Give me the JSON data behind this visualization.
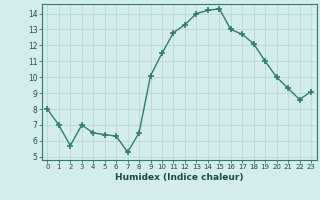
{
  "x": [
    0,
    1,
    2,
    3,
    4,
    5,
    6,
    7,
    8,
    9,
    10,
    11,
    12,
    13,
    14,
    15,
    16,
    17,
    18,
    19,
    20,
    21,
    22,
    23
  ],
  "y": [
    8.0,
    7.0,
    5.7,
    7.0,
    6.5,
    6.4,
    6.3,
    5.3,
    6.5,
    10.1,
    11.5,
    12.8,
    13.3,
    14.0,
    14.2,
    14.3,
    13.0,
    12.7,
    12.1,
    11.0,
    10.0,
    9.3,
    8.6,
    9.1
  ],
  "line_color": "#2e7d6e",
  "marker": "+",
  "marker_size": 4,
  "marker_lw": 1.2,
  "bg_color": "#d4ecec",
  "grid_color": "#b8d8d8",
  "xlabel": "Humidex (Indice chaleur)",
  "xlim": [
    -0.5,
    23.5
  ],
  "ylim": [
    4.8,
    14.6
  ],
  "yticks": [
    5,
    6,
    7,
    8,
    9,
    10,
    11,
    12,
    13,
    14
  ],
  "xticks": [
    0,
    1,
    2,
    3,
    4,
    5,
    6,
    7,
    8,
    9,
    10,
    11,
    12,
    13,
    14,
    15,
    16,
    17,
    18,
    19,
    20,
    21,
    22,
    23
  ]
}
